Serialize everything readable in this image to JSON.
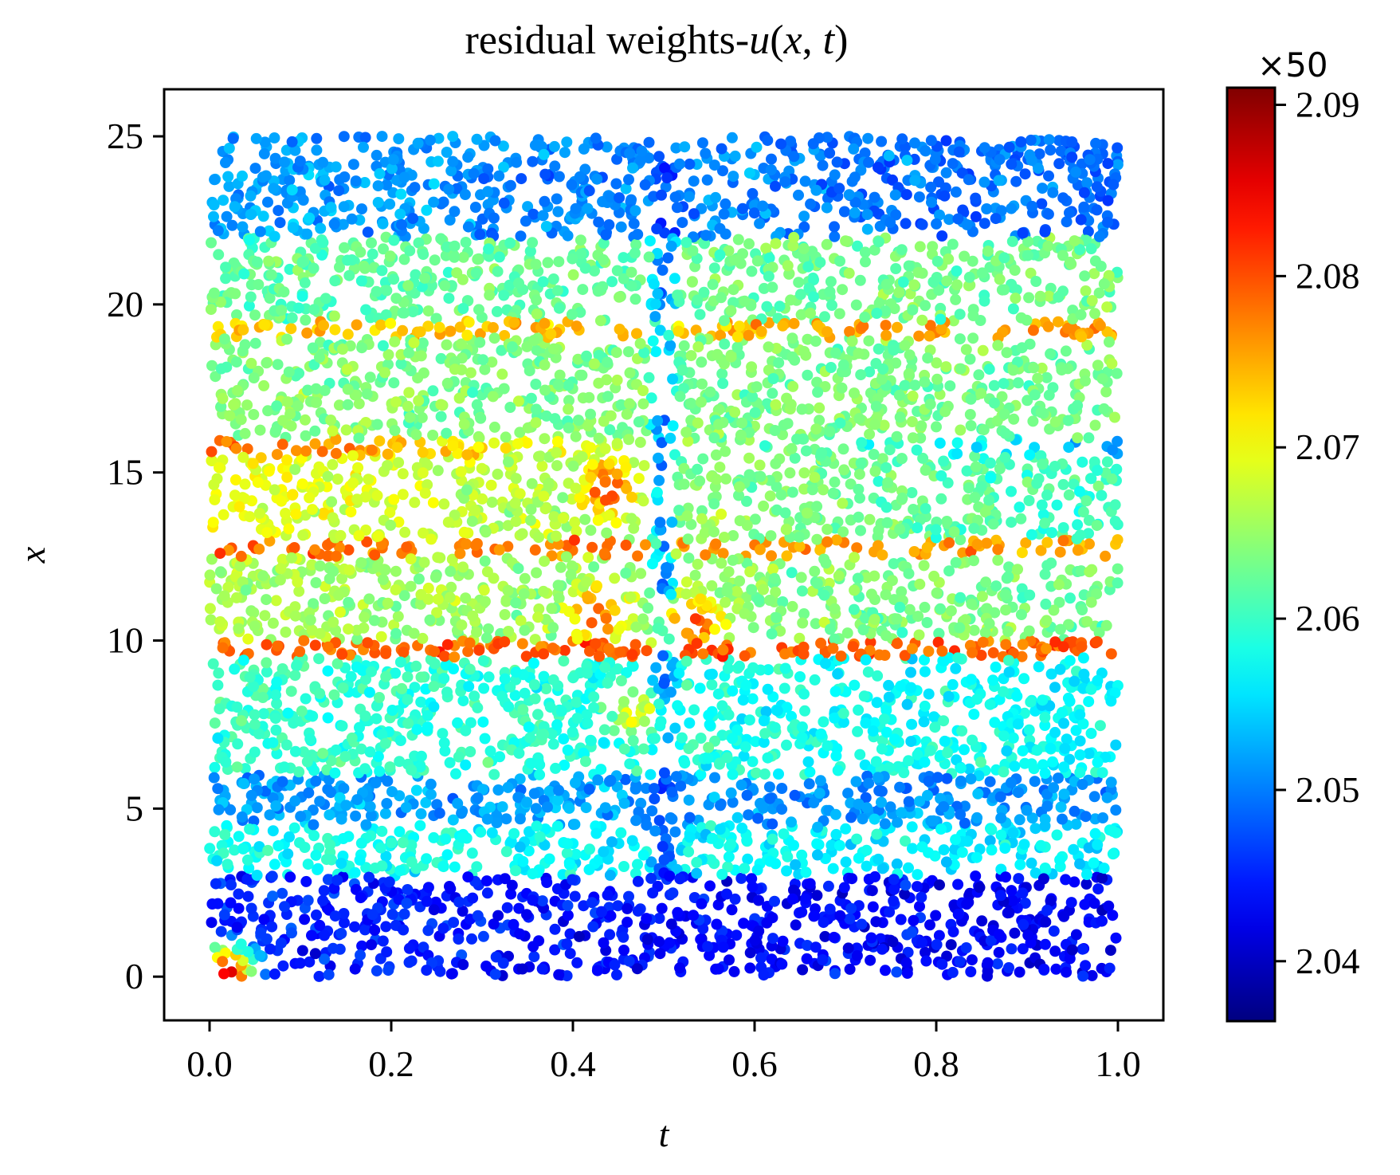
{
  "chart_data": {
    "type": "scatter",
    "title_prefix": "residual weights-",
    "title_math": [
      "u",
      "(",
      "x",
      ", ",
      "t",
      ")"
    ],
    "xlabel": "t",
    "ylabel": "x",
    "xlim": [
      -0.05,
      1.05
    ],
    "ylim": [
      -1.3,
      26.4
    ],
    "x_ticks": [
      0.0,
      0.2,
      0.4,
      0.6,
      0.8,
      1.0
    ],
    "x_tick_labels": [
      "0.0",
      "0.2",
      "0.4",
      "0.6",
      "0.8",
      "1.0"
    ],
    "y_ticks": [
      0,
      5,
      10,
      15,
      20,
      25
    ],
    "y_tick_labels": [
      "0",
      "5",
      "10",
      "15",
      "20",
      "25"
    ],
    "grid": false,
    "colormap": "jet",
    "colorbar": {
      "range": [
        2.0365,
        2.091
      ],
      "ticks": [
        2.04,
        2.05,
        2.06,
        2.07,
        2.08,
        2.09
      ],
      "tick_labels": [
        "2.04",
        "2.05",
        "2.06",
        "2.07",
        "2.08",
        "2.09"
      ],
      "exponent_label": "×50"
    },
    "domain": {
      "t": [
        0,
        1
      ],
      "x": [
        0,
        25
      ]
    },
    "bands": [
      {
        "x": [
          0,
          3
        ],
        "left": 2.045,
        "right": 2.043
      },
      {
        "x": [
          3,
          4.5
        ],
        "left": 2.058,
        "right": 2.056
      },
      {
        "x": [
          4.5,
          6
        ],
        "left": 2.052,
        "right": 2.051
      },
      {
        "x": [
          6,
          9.5
        ],
        "left": 2.06,
        "right": 2.057
      },
      {
        "x": [
          9.5,
          10
        ],
        "left": 2.079,
        "right": 2.079
      },
      {
        "x": [
          10,
          12.5
        ],
        "left": 2.066,
        "right": 2.063
      },
      {
        "x": [
          12.5,
          13
        ],
        "left": 2.079,
        "right": 2.075
      },
      {
        "x": [
          13,
          15.5
        ],
        "left": 2.07,
        "right": 2.06
      },
      {
        "x": [
          15.5,
          16
        ],
        "left": 2.08,
        "right": 2.052
      },
      {
        "x": [
          16,
          19
        ],
        "left": 2.064,
        "right": 2.063
      },
      {
        "x": [
          19,
          19.5
        ],
        "left": 2.073,
        "right": 2.076
      },
      {
        "x": [
          19.5,
          22
        ],
        "left": 2.062,
        "right": 2.063
      },
      {
        "x": [
          22,
          25
        ],
        "left": 2.052,
        "right": 2.049
      }
    ],
    "central_feature": {
      "t": 0.5,
      "value": 2.045
    },
    "hot_spots": [
      {
        "t": 0.44,
        "x": 14.5,
        "value": 2.082
      },
      {
        "t": 0.53,
        "x": 10.5,
        "value": 2.083
      },
      {
        "t": 0.43,
        "x": 10.8,
        "value": 2.081
      },
      {
        "t": 0.47,
        "x": 7.8,
        "value": 2.071
      },
      {
        "t": 0.02,
        "x": 0.15,
        "value": 2.091
      }
    ],
    "n_points": 6500
  }
}
